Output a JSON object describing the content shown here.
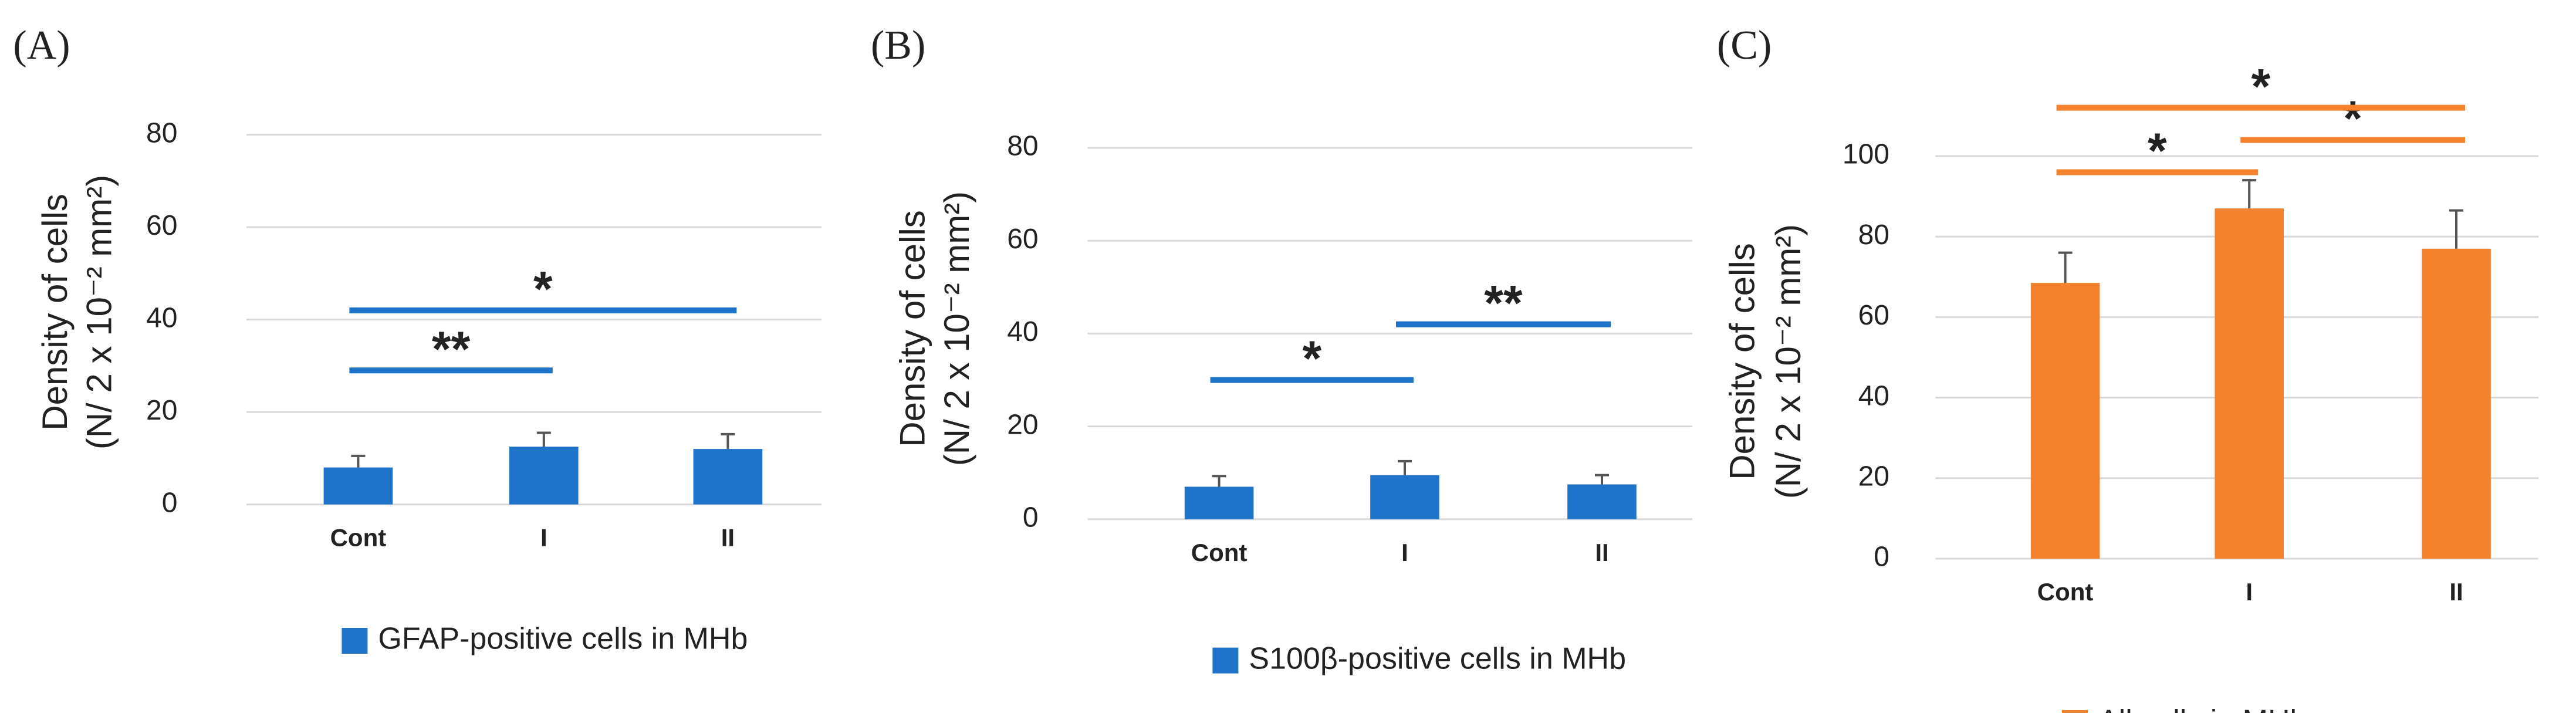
{
  "chart_data": [
    {
      "type": "bar",
      "panel_label": "(A)",
      "ylabel": [
        "Density of cells",
        "(N/ 2 x 10⁻² mm²)"
      ],
      "categories": [
        "Cont",
        "I",
        "II"
      ],
      "series": [
        {
          "name": "GFAP-positive cells in MHb",
          "color": "#1f74c9",
          "values": [
            8,
            12.5,
            12
          ],
          "errors": [
            2.5,
            3,
            3.2
          ]
        }
      ],
      "ylim": [
        0,
        80
      ],
      "yticks": [
        0,
        20,
        40,
        60,
        80
      ],
      "grid": true,
      "significance": [
        {
          "from": 0,
          "to": 1,
          "y": 29,
          "label": "**"
        },
        {
          "from": 0,
          "to": 2,
          "y": 42,
          "label": "*"
        }
      ]
    },
    {
      "type": "bar",
      "panel_label": "(B)",
      "ylabel": [
        "Density of cells",
        "(N/ 2 x 10⁻² mm²)"
      ],
      "categories": [
        "Cont",
        "I",
        "II"
      ],
      "series": [
        {
          "name": "S100β-positive cells in MHb",
          "color": "#1f74c9",
          "values": [
            7,
            9.5,
            7.5
          ],
          "errors": [
            2.3,
            3,
            2
          ]
        }
      ],
      "ylim": [
        0,
        80
      ],
      "yticks": [
        0,
        20,
        40,
        60,
        80
      ],
      "grid": true,
      "significance": [
        {
          "from": 0,
          "to": 1,
          "y": 30,
          "label": "*"
        },
        {
          "from": 1,
          "to": 2,
          "y": 42,
          "label": "**"
        }
      ]
    },
    {
      "type": "bar",
      "panel_label": "(C)",
      "ylabel": [
        "Density of cells",
        "(N/ 2 x 10⁻² mm²)"
      ],
      "categories": [
        "Cont",
        "I",
        "II"
      ],
      "series": [
        {
          "name": "All cells in MHb",
          "color": "#f5822e",
          "values": [
            68.5,
            87,
            77
          ],
          "errors": [
            7.5,
            7,
            9.5
          ]
        }
      ],
      "ylim": [
        0,
        100
      ],
      "yticks": [
        0,
        20,
        40,
        60,
        80,
        100
      ],
      "grid": true,
      "significance": [
        {
          "from": 0,
          "to": 1,
          "y": 96,
          "label": "*"
        },
        {
          "from": 1,
          "to": 2,
          "y": 104,
          "label": "*"
        },
        {
          "from": 0,
          "to": 2,
          "y": 112,
          "label": "*"
        }
      ]
    }
  ]
}
